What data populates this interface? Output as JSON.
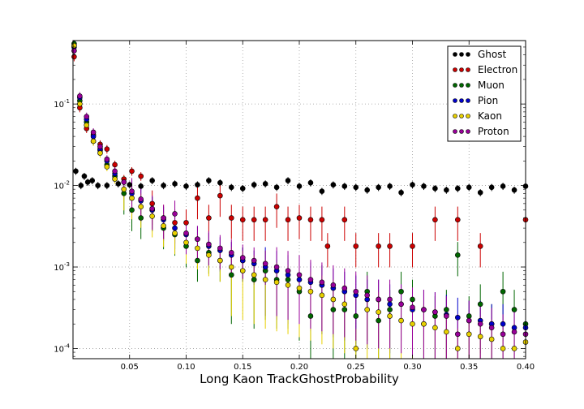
{
  "chart_data": {
    "type": "scatter",
    "title": "",
    "xlabel": "Long Kaon TrackGhostProbability",
    "ylabel": "",
    "xlim": [
      0.0,
      0.4
    ],
    "ylim": [
      7.5e-05,
      0.6
    ],
    "yscale": "log",
    "grid": true,
    "legend_position": "top-right",
    "x_ticks": [
      0.05,
      0.1,
      0.15,
      0.2,
      0.25,
      0.3,
      0.35,
      0.4
    ],
    "x_tick_labels": [
      "0.05",
      "0.10",
      "0.15",
      "0.20",
      "0.25",
      "0.30",
      "0.35",
      "0.40"
    ],
    "y_ticks": [
      0.0001,
      0.001,
      0.01,
      0.1
    ],
    "y_tick_labels": [
      {
        "base": "10",
        "exp": "-4"
      },
      {
        "base": "10",
        "exp": "-3"
      },
      {
        "base": "10",
        "exp": "-2"
      },
      {
        "base": "10",
        "exp": "-1"
      }
    ],
    "bin_width": 0.0025,
    "series": [
      {
        "name": "Ghost",
        "color": "#000000",
        "points": [
          [
            0.0025,
            0.015
          ],
          [
            0.007,
            0.01
          ],
          [
            0.01,
            0.013
          ],
          [
            0.013,
            0.011
          ],
          [
            0.017,
            0.0115
          ],
          [
            0.022,
            0.01
          ],
          [
            0.03,
            0.01
          ],
          [
            0.04,
            0.0105
          ],
          [
            0.05,
            0.0102
          ],
          [
            0.06,
            0.0098
          ],
          [
            0.07,
            0.0115
          ],
          [
            0.08,
            0.01
          ],
          [
            0.09,
            0.0105
          ],
          [
            0.1,
            0.0098
          ],
          [
            0.11,
            0.0102
          ],
          [
            0.12,
            0.0115
          ],
          [
            0.13,
            0.0108
          ],
          [
            0.14,
            0.0095
          ],
          [
            0.15,
            0.0092
          ],
          [
            0.16,
            0.0102
          ],
          [
            0.17,
            0.0105
          ],
          [
            0.18,
            0.0095
          ],
          [
            0.19,
            0.0115
          ],
          [
            0.2,
            0.0098
          ],
          [
            0.21,
            0.0108
          ],
          [
            0.22,
            0.0085
          ],
          [
            0.23,
            0.0102
          ],
          [
            0.24,
            0.0098
          ],
          [
            0.25,
            0.0095
          ],
          [
            0.26,
            0.0088
          ],
          [
            0.27,
            0.0095
          ],
          [
            0.28,
            0.0098
          ],
          [
            0.29,
            0.0082
          ],
          [
            0.3,
            0.0102
          ],
          [
            0.31,
            0.0098
          ],
          [
            0.32,
            0.0092
          ],
          [
            0.33,
            0.0088
          ],
          [
            0.34,
            0.0092
          ],
          [
            0.35,
            0.0095
          ],
          [
            0.36,
            0.0082
          ],
          [
            0.37,
            0.0095
          ],
          [
            0.38,
            0.0098
          ],
          [
            0.39,
            0.0088
          ],
          [
            0.4,
            0.0098
          ]
        ]
      },
      {
        "name": "Electron",
        "color": "#cc0000",
        "points": [
          [
            0.001,
            0.38
          ],
          [
            0.006,
            0.09
          ],
          [
            0.012,
            0.05
          ],
          [
            0.018,
            0.042
          ],
          [
            0.024,
            0.032
          ],
          [
            0.03,
            0.028
          ],
          [
            0.037,
            0.018
          ],
          [
            0.045,
            0.012
          ],
          [
            0.052,
            0.015
          ],
          [
            0.06,
            0.013
          ],
          [
            0.07,
            0.006
          ],
          [
            0.08,
            0.004
          ],
          [
            0.09,
            0.0035
          ],
          [
            0.1,
            0.0035
          ],
          [
            0.11,
            0.007
          ],
          [
            0.12,
            0.004
          ],
          [
            0.13,
            0.0075
          ],
          [
            0.14,
            0.004
          ],
          [
            0.15,
            0.0038
          ],
          [
            0.16,
            0.0038
          ],
          [
            0.17,
            0.0038
          ],
          [
            0.18,
            0.0055
          ],
          [
            0.19,
            0.0038
          ],
          [
            0.2,
            0.004
          ],
          [
            0.21,
            0.0038
          ],
          [
            0.22,
            0.0038
          ],
          [
            0.225,
            0.0018
          ],
          [
            0.24,
            0.0038
          ],
          [
            0.25,
            0.0018
          ],
          [
            0.27,
            0.0018
          ],
          [
            0.28,
            0.0018
          ],
          [
            0.3,
            0.0018
          ],
          [
            0.32,
            0.0038
          ],
          [
            0.34,
            0.0038
          ],
          [
            0.36,
            0.0018
          ],
          [
            0.4,
            0.0038
          ]
        ]
      },
      {
        "name": "Muon",
        "color": "#006600",
        "points": [
          [
            0.001,
            0.55
          ],
          [
            0.006,
            0.11
          ],
          [
            0.012,
            0.06
          ],
          [
            0.018,
            0.035
          ],
          [
            0.024,
            0.027
          ],
          [
            0.03,
            0.018
          ],
          [
            0.037,
            0.013
          ],
          [
            0.045,
            0.008
          ],
          [
            0.052,
            0.005
          ],
          [
            0.06,
            0.004
          ],
          [
            0.07,
            0.005
          ],
          [
            0.08,
            0.003
          ],
          [
            0.09,
            0.0025
          ],
          [
            0.1,
            0.0018
          ],
          [
            0.11,
            0.0012
          ],
          [
            0.12,
            0.0015
          ],
          [
            0.13,
            0.0012
          ],
          [
            0.14,
            0.0008
          ],
          [
            0.15,
            0.0012
          ],
          [
            0.16,
            0.0007
          ],
          [
            0.17,
            0.0009
          ],
          [
            0.18,
            0.0007
          ],
          [
            0.19,
            0.0007
          ],
          [
            0.2,
            0.0005
          ],
          [
            0.21,
            0.00025
          ],
          [
            0.22,
            0.0006
          ],
          [
            0.23,
            0.0003
          ],
          [
            0.24,
            0.0003
          ],
          [
            0.25,
            0.00025
          ],
          [
            0.26,
            0.0005
          ],
          [
            0.27,
            0.00022
          ],
          [
            0.28,
            0.0003
          ],
          [
            0.29,
            0.0005
          ],
          [
            0.3,
            0.0004
          ],
          [
            0.31,
            0.0002
          ],
          [
            0.32,
            0.00025
          ],
          [
            0.33,
            0.0003
          ],
          [
            0.34,
            0.0014
          ],
          [
            0.35,
            0.00025
          ],
          [
            0.36,
            0.00035
          ],
          [
            0.37,
            0.0002
          ],
          [
            0.38,
            0.0005
          ],
          [
            0.39,
            0.0003
          ],
          [
            0.4,
            0.0002
          ]
        ]
      },
      {
        "name": "Pion",
        "color": "#0000cc",
        "points": [
          [
            0.001,
            0.5
          ],
          [
            0.006,
            0.12
          ],
          [
            0.012,
            0.065
          ],
          [
            0.018,
            0.04
          ],
          [
            0.024,
            0.028
          ],
          [
            0.03,
            0.02
          ],
          [
            0.037,
            0.014
          ],
          [
            0.045,
            0.011
          ],
          [
            0.052,
            0.008
          ],
          [
            0.06,
            0.0065
          ],
          [
            0.07,
            0.005
          ],
          [
            0.08,
            0.0038
          ],
          [
            0.09,
            0.003
          ],
          [
            0.1,
            0.0025
          ],
          [
            0.11,
            0.0022
          ],
          [
            0.12,
            0.0018
          ],
          [
            0.13,
            0.0016
          ],
          [
            0.14,
            0.0014
          ],
          [
            0.15,
            0.0012
          ],
          [
            0.16,
            0.0011
          ],
          [
            0.17,
            0.001
          ],
          [
            0.18,
            0.0009
          ],
          [
            0.19,
            0.0008
          ],
          [
            0.2,
            0.0007
          ],
          [
            0.21,
            0.00065
          ],
          [
            0.22,
            0.0006
          ],
          [
            0.23,
            0.00055
          ],
          [
            0.24,
            0.0005
          ],
          [
            0.25,
            0.00045
          ],
          [
            0.26,
            0.0004
          ],
          [
            0.27,
            0.0004
          ],
          [
            0.28,
            0.00035
          ],
          [
            0.29,
            0.00035
          ],
          [
            0.3,
            0.0003
          ],
          [
            0.31,
            0.0003
          ],
          [
            0.32,
            0.00028
          ],
          [
            0.33,
            0.00026
          ],
          [
            0.34,
            0.00024
          ],
          [
            0.35,
            0.00022
          ],
          [
            0.36,
            0.00022
          ],
          [
            0.37,
            0.0002
          ],
          [
            0.38,
            0.0002
          ],
          [
            0.39,
            0.00018
          ],
          [
            0.4,
            0.00018
          ]
        ]
      },
      {
        "name": "Kaon",
        "color": "#e8d000",
        "points": [
          [
            0.001,
            0.52
          ],
          [
            0.006,
            0.1
          ],
          [
            0.012,
            0.055
          ],
          [
            0.018,
            0.035
          ],
          [
            0.024,
            0.025
          ],
          [
            0.03,
            0.017
          ],
          [
            0.037,
            0.012
          ],
          [
            0.045,
            0.009
          ],
          [
            0.052,
            0.007
          ],
          [
            0.06,
            0.0055
          ],
          [
            0.07,
            0.0042
          ],
          [
            0.08,
            0.0032
          ],
          [
            0.09,
            0.0026
          ],
          [
            0.1,
            0.002
          ],
          [
            0.11,
            0.0017
          ],
          [
            0.12,
            0.0014
          ],
          [
            0.13,
            0.0012
          ],
          [
            0.14,
            0.001
          ],
          [
            0.15,
            0.0009
          ],
          [
            0.16,
            0.0008
          ],
          [
            0.17,
            0.0007
          ],
          [
            0.18,
            0.00065
          ],
          [
            0.19,
            0.0006
          ],
          [
            0.2,
            0.00055
          ],
          [
            0.21,
            0.0005
          ],
          [
            0.22,
            0.00045
          ],
          [
            0.23,
            0.0004
          ],
          [
            0.24,
            0.00035
          ],
          [
            0.25,
            0.0001
          ],
          [
            0.26,
            0.0003
          ],
          [
            0.27,
            0.00028
          ],
          [
            0.28,
            0.00025
          ],
          [
            0.29,
            0.00022
          ],
          [
            0.3,
            0.0002
          ],
          [
            0.31,
            0.0002
          ],
          [
            0.32,
            0.00018
          ],
          [
            0.33,
            0.00016
          ],
          [
            0.34,
            0.0001
          ],
          [
            0.35,
            0.00015
          ],
          [
            0.36,
            0.00014
          ],
          [
            0.37,
            0.00013
          ],
          [
            0.38,
            0.0001
          ],
          [
            0.39,
            0.0001
          ],
          [
            0.4,
            0.00012
          ]
        ]
      },
      {
        "name": "Proton",
        "color": "#990099",
        "points": [
          [
            0.001,
            0.45
          ],
          [
            0.006,
            0.125
          ],
          [
            0.012,
            0.07
          ],
          [
            0.018,
            0.045
          ],
          [
            0.024,
            0.03
          ],
          [
            0.03,
            0.021
          ],
          [
            0.037,
            0.015
          ],
          [
            0.045,
            0.011
          ],
          [
            0.052,
            0.0085
          ],
          [
            0.06,
            0.0068
          ],
          [
            0.07,
            0.0052
          ],
          [
            0.08,
            0.004
          ],
          [
            0.09,
            0.0045
          ],
          [
            0.1,
            0.0026
          ],
          [
            0.11,
            0.0022
          ],
          [
            0.12,
            0.0019
          ],
          [
            0.13,
            0.0017
          ],
          [
            0.14,
            0.0015
          ],
          [
            0.15,
            0.0013
          ],
          [
            0.16,
            0.0012
          ],
          [
            0.17,
            0.0011
          ],
          [
            0.18,
            0.001
          ],
          [
            0.19,
            0.0009
          ],
          [
            0.2,
            0.0008
          ],
          [
            0.21,
            0.0007
          ],
          [
            0.22,
            0.00065
          ],
          [
            0.23,
            0.0006
          ],
          [
            0.24,
            0.00055
          ],
          [
            0.25,
            0.0005
          ],
          [
            0.26,
            0.00045
          ],
          [
            0.27,
            0.0004
          ],
          [
            0.28,
            0.0004
          ],
          [
            0.29,
            0.00035
          ],
          [
            0.3,
            0.00032
          ],
          [
            0.31,
            0.0003
          ],
          [
            0.32,
            0.00028
          ],
          [
            0.33,
            0.00025
          ],
          [
            0.34,
            0.00015
          ],
          [
            0.35,
            0.00022
          ],
          [
            0.36,
            0.0002
          ],
          [
            0.37,
            0.00018
          ],
          [
            0.38,
            0.00015
          ],
          [
            0.39,
            0.00016
          ],
          [
            0.4,
            0.00015
          ]
        ]
      }
    ]
  }
}
